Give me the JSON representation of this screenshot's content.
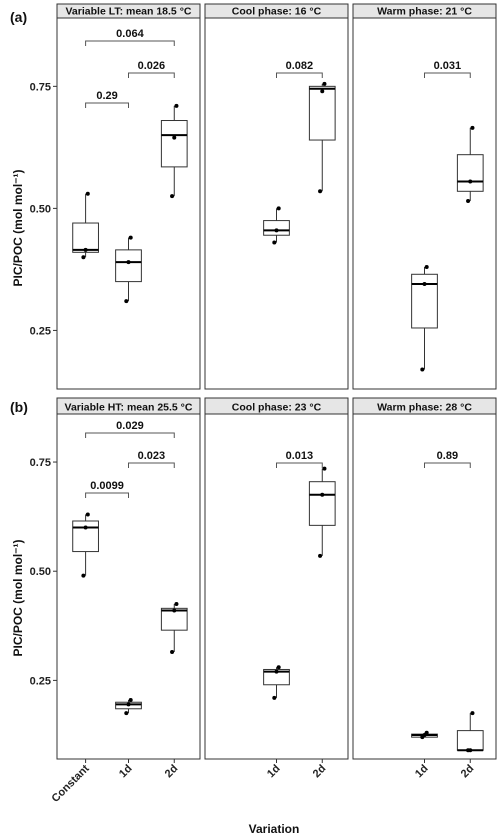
{
  "chart_data": {
    "type": "box",
    "xlabel": "Variation",
    "ylabel": "PIC/POC (mol mol⁻¹)",
    "yticks": [
      "0.25",
      "0.50",
      "0.75"
    ],
    "rows": [
      {
        "label": "(a)",
        "ylim": [
          0.13,
          0.89
        ],
        "panels": [
          {
            "title": "Variable LT: mean 18.5 °C",
            "categories": [
              "Constant",
              "1d",
              "2d"
            ],
            "boxes": [
              {
                "category": "Constant",
                "whisker_low": 0.4,
                "q1": 0.41,
                "median": 0.415,
                "q3": 0.47,
                "whisker_high": 0.53,
                "points": [
                  0.4,
                  0.415,
                  0.53
                ]
              },
              {
                "category": "1d",
                "whisker_low": 0.31,
                "q1": 0.35,
                "median": 0.39,
                "q3": 0.415,
                "whisker_high": 0.44,
                "points": [
                  0.31,
                  0.39,
                  0.44
                ]
              },
              {
                "category": "2d",
                "whisker_low": 0.525,
                "q1": 0.585,
                "median": 0.65,
                "q3": 0.68,
                "whisker_high": 0.71,
                "points": [
                  0.525,
                  0.645,
                  0.71
                ]
              }
            ],
            "comparisons": [
              {
                "from": "Constant",
                "to": "1d",
                "p": "0.29"
              },
              {
                "from": "1d",
                "to": "2d",
                "p": "0.026"
              },
              {
                "from": "Constant",
                "to": "2d",
                "p": "0.064"
              }
            ]
          },
          {
            "title": "Cool phase: 16 °C",
            "categories": [
              "1d",
              "2d"
            ],
            "boxes": [
              {
                "category": "1d",
                "whisker_low": 0.43,
                "q1": 0.445,
                "median": 0.455,
                "q3": 0.475,
                "whisker_high": 0.5,
                "points": [
                  0.43,
                  0.455,
                  0.5
                ]
              },
              {
                "category": "2d",
                "whisker_low": 0.535,
                "q1": 0.64,
                "median": 0.745,
                "q3": 0.75,
                "whisker_high": 0.755,
                "points": [
                  0.535,
                  0.74,
                  0.755
                ]
              }
            ],
            "comparisons": [
              {
                "from": "1d",
                "to": "2d",
                "p": "0.082"
              }
            ]
          },
          {
            "title": "Warm phase: 21 °C",
            "categories": [
              "1d",
              "2d"
            ],
            "boxes": [
              {
                "category": "1d",
                "whisker_low": 0.17,
                "q1": 0.255,
                "median": 0.345,
                "q3": 0.365,
                "whisker_high": 0.38,
                "points": [
                  0.17,
                  0.345,
                  0.38
                ]
              },
              {
                "category": "2d",
                "whisker_low": 0.515,
                "q1": 0.535,
                "median": 0.555,
                "q3": 0.61,
                "whisker_high": 0.665,
                "points": [
                  0.515,
                  0.555,
                  0.665
                ]
              }
            ],
            "comparisons": [
              {
                "from": "1d",
                "to": "2d",
                "p": "0.031"
              }
            ]
          }
        ]
      },
      {
        "label": "(b)",
        "ylim": [
          0.07,
          0.86
        ],
        "panels": [
          {
            "title": "Variable HT: mean 25.5 °C",
            "categories": [
              "Constant",
              "1d",
              "2d"
            ],
            "boxes": [
              {
                "category": "Constant",
                "whisker_low": 0.49,
                "q1": 0.545,
                "median": 0.6,
                "q3": 0.615,
                "whisker_high": 0.63,
                "points": [
                  0.49,
                  0.6,
                  0.63
                ]
              },
              {
                "category": "1d",
                "whisker_low": 0.175,
                "q1": 0.185,
                "median": 0.195,
                "q3": 0.2,
                "whisker_high": 0.205,
                "points": [
                  0.175,
                  0.195,
                  0.205
                ]
              },
              {
                "category": "2d",
                "whisker_low": 0.315,
                "q1": 0.365,
                "median": 0.41,
                "q3": 0.415,
                "whisker_high": 0.425,
                "points": [
                  0.315,
                  0.41,
                  0.425
                ]
              }
            ],
            "comparisons": [
              {
                "from": "Constant",
                "to": "1d",
                "p": "0.0099"
              },
              {
                "from": "1d",
                "to": "2d",
                "p": "0.023"
              },
              {
                "from": "Constant",
                "to": "2d",
                "p": "0.029"
              }
            ]
          },
          {
            "title": "Cool phase: 23 °C",
            "categories": [
              "1d",
              "2d"
            ],
            "boxes": [
              {
                "category": "1d",
                "whisker_low": 0.21,
                "q1": 0.24,
                "median": 0.27,
                "q3": 0.275,
                "whisker_high": 0.28,
                "points": [
                  0.21,
                  0.27,
                  0.28
                ]
              },
              {
                "category": "2d",
                "whisker_low": 0.535,
                "q1": 0.605,
                "median": 0.675,
                "q3": 0.705,
                "whisker_high": 0.735,
                "points": [
                  0.535,
                  0.675,
                  0.735
                ]
              }
            ],
            "comparisons": [
              {
                "from": "1d",
                "to": "2d",
                "p": "0.013"
              }
            ]
          },
          {
            "title": "Warm phase: 28 °C",
            "categories": [
              "1d",
              "2d"
            ],
            "boxes": [
              {
                "category": "1d",
                "whisker_low": 0.12,
                "q1": 0.12,
                "median": 0.125,
                "q3": 0.127,
                "whisker_high": 0.13,
                "points": [
                  0.12,
                  0.125,
                  0.13
                ]
              },
              {
                "category": "2d",
                "whisker_low": 0.09,
                "q1": 0.09,
                "median": 0.09,
                "q3": 0.135,
                "whisker_high": 0.175,
                "points": [
                  0.09,
                  0.09,
                  0.175
                ]
              }
            ],
            "comparisons": [
              {
                "from": "1d",
                "to": "2d",
                "p": "0.89"
              }
            ]
          }
        ]
      }
    ]
  }
}
